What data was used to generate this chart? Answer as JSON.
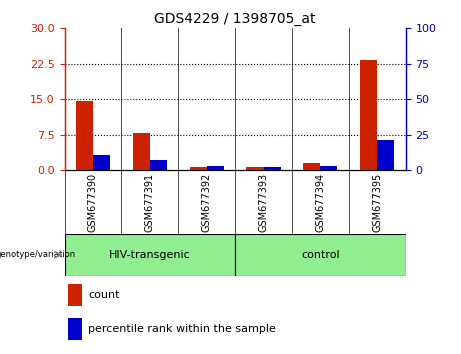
{
  "title": "GDS4229 / 1398705_at",
  "samples": [
    "GSM677390",
    "GSM677391",
    "GSM677392",
    "GSM677393",
    "GSM677394",
    "GSM677395"
  ],
  "count_values": [
    14.5,
    7.8,
    0.7,
    0.65,
    1.5,
    23.2
  ],
  "percentile_values": [
    10.5,
    7.0,
    2.7,
    2.2,
    3.0,
    21.0
  ],
  "left_ylim": [
    0,
    30
  ],
  "right_ylim": [
    0,
    100
  ],
  "left_yticks": [
    0,
    7.5,
    15,
    22.5,
    30
  ],
  "right_yticks": [
    0,
    25,
    50,
    75,
    100
  ],
  "left_tick_color": "#CC2200",
  "right_tick_color": "#0000CC",
  "bar_width": 0.3,
  "count_color": "#CC2200",
  "percentile_color": "#0000CC",
  "xtick_bg_color": "#C0C0C0",
  "plot_bg_color": "#FFFFFF",
  "group_bg_color": "#90EE90",
  "hiv_label": "HIV-transgenic",
  "ctrl_label": "control",
  "genotype_label": "genotype/variation",
  "legend_count_label": "count",
  "legend_percentile_label": "percentile rank within the sample",
  "title_fontsize": 10,
  "tick_fontsize": 8,
  "sample_fontsize": 7,
  "legend_fontsize": 8,
  "group_fontsize": 8
}
